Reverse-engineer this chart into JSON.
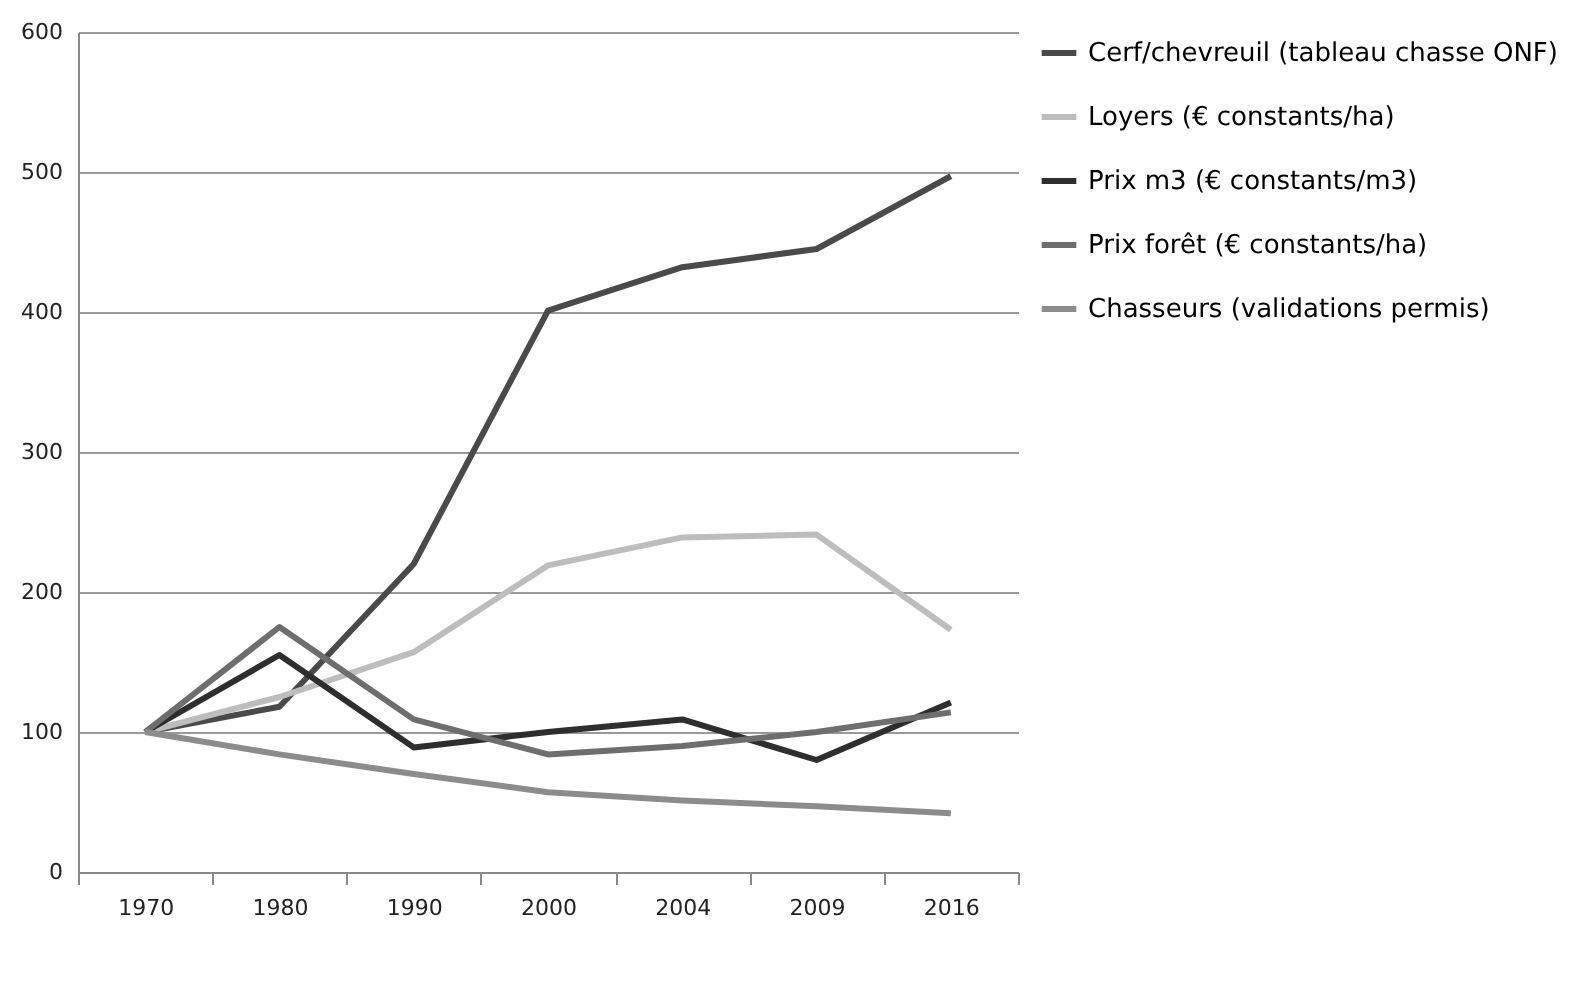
{
  "chart_data": {
    "type": "line",
    "categories": [
      "1970",
      "1980",
      "1990",
      "2000",
      "2004",
      "2009",
      "2016"
    ],
    "series": [
      {
        "name": "Cerf/chevreuil (tableau chasse ONF)",
        "color": "#4a4a4a",
        "values": [
          100,
          118,
          220,
          401,
          432,
          445,
          497
        ]
      },
      {
        "name": "Loyers (€ constants/ha)",
        "color": "#bdbdbd",
        "values": [
          100,
          125,
          157,
          219,
          239,
          241,
          173
        ]
      },
      {
        "name": "Prix m3 (€ constants/m3)",
        "color": "#2e2e2e",
        "values": [
          100,
          155,
          89,
          100,
          109,
          80,
          121
        ]
      },
      {
        "name": "Prix forêt (€ constants/ha)",
        "color": "#6e6e6e",
        "values": [
          100,
          175,
          109,
          84,
          90,
          100,
          114
        ]
      },
      {
        "name": "Chasseurs (validations permis)",
        "color": "#8c8c8c",
        "values": [
          100,
          84,
          70,
          57,
          51,
          47,
          42
        ]
      }
    ],
    "ylim": [
      0,
      600
    ],
    "yticks": [
      0,
      100,
      200,
      300,
      400,
      500,
      600
    ],
    "grid": "y",
    "legend": "right",
    "marker": "none",
    "line_style": "solid"
  }
}
